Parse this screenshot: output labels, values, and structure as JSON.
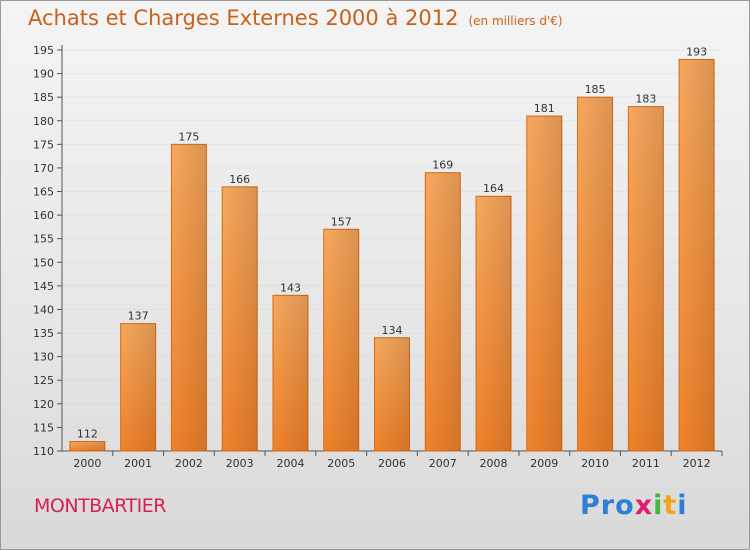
{
  "title": "Achats et Charges Externes 2000 à 2012",
  "subtitle": "(en milliers d'€)",
  "town": "MONTBARTIER",
  "logo": {
    "text": "Proxiti",
    "letters": [
      "P",
      "r",
      "o",
      "x",
      "i",
      "t",
      "i"
    ],
    "colors": [
      "#2c7fd6",
      "#2c7fd6",
      "#2c7fd6",
      "#e01e6f",
      "#49b53c",
      "#f2a51c",
      "#2c7fd6"
    ]
  },
  "colors": {
    "bar": "#f0822a",
    "bar_light": "#f7a85e",
    "title": "#c8621b",
    "town": "#d8204a"
  },
  "chart_data": {
    "type": "bar",
    "categories": [
      "2000",
      "2001",
      "2002",
      "2003",
      "2004",
      "2005",
      "2006",
      "2007",
      "2008",
      "2009",
      "2010",
      "2011",
      "2012"
    ],
    "values": [
      112,
      137,
      175,
      166,
      143,
      157,
      134,
      169,
      164,
      181,
      185,
      183,
      193
    ],
    "ylim": [
      110,
      195
    ],
    "yticks": [
      110,
      115,
      120,
      125,
      130,
      135,
      140,
      145,
      150,
      155,
      160,
      165,
      170,
      175,
      180,
      185,
      190,
      195
    ],
    "grid": true,
    "xlabel": "",
    "ylabel": ""
  }
}
